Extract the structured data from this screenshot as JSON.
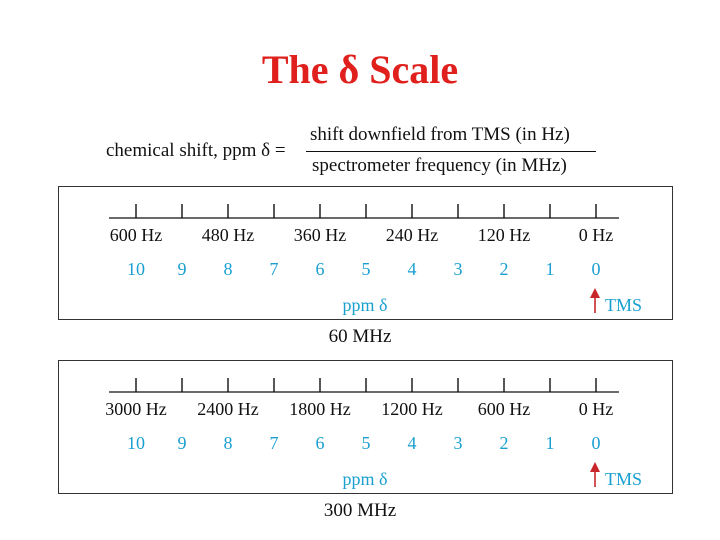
{
  "title": "The δ Scale",
  "formula": {
    "lhs": "chemical shift, ppm δ =",
    "numerator": "shift downfield from TMS (in Hz)",
    "denominator": "spectrometer frequency (in MHz)"
  },
  "colors": {
    "title": "#e0201c",
    "ppm_text": "#1a9fd0",
    "tms_arrow": "#c8262a",
    "text": "#111111",
    "frame": "#333333"
  },
  "panels": [
    {
      "frequency_label": "60 MHz",
      "hz_labels": [
        "600 Hz",
        "480 Hz",
        "360 Hz",
        "240 Hz",
        "120 Hz",
        "0 Hz"
      ],
      "ppm_labels": [
        "10",
        "9",
        "8",
        "7",
        "6",
        "5",
        "4",
        "3",
        "2",
        "1",
        "0"
      ],
      "ppm_caption": "ppm δ",
      "tms_label": "TMS",
      "tms_icon": "up-arrow-icon"
    },
    {
      "frequency_label": "300 MHz",
      "hz_labels": [
        "3000 Hz",
        "2400 Hz",
        "1800 Hz",
        "1200 Hz",
        "600 Hz",
        "0 Hz"
      ],
      "ppm_labels": [
        "10",
        "9",
        "8",
        "7",
        "6",
        "5",
        "4",
        "3",
        "2",
        "1",
        "0"
      ],
      "ppm_caption": "ppm δ",
      "tms_label": "TMS",
      "tms_icon": "up-arrow-icon"
    }
  ]
}
